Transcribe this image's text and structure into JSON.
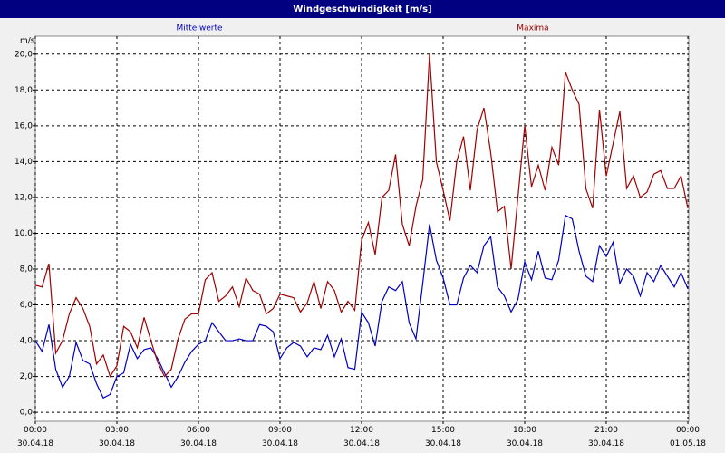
{
  "chart_data": {
    "type": "line",
    "title": "Windgeschwindigkeit [m/s]",
    "y_label": "m/s",
    "x": [
      0,
      0.25,
      0.5,
      0.75,
      1,
      1.25,
      1.5,
      1.75,
      2,
      2.25,
      2.5,
      2.75,
      3,
      3.25,
      3.5,
      3.75,
      4,
      4.25,
      4.5,
      4.75,
      5,
      5.25,
      5.5,
      5.75,
      6,
      6.25,
      6.5,
      6.75,
      7,
      7.25,
      7.5,
      7.75,
      8,
      8.25,
      8.5,
      8.75,
      9,
      9.25,
      9.5,
      9.75,
      10,
      10.25,
      10.5,
      10.75,
      11,
      11.25,
      11.5,
      11.75,
      12,
      12.25,
      12.5,
      12.75,
      13,
      13.25,
      13.5,
      13.75,
      14,
      14.25,
      14.5,
      14.75,
      15,
      15.25,
      15.5,
      15.75,
      16,
      16.25,
      16.5,
      16.75,
      17,
      17.25,
      17.5,
      17.75,
      18,
      18.25,
      18.5,
      18.75,
      19,
      19.25,
      19.5,
      19.75,
      20,
      20.25,
      20.5,
      20.75,
      21,
      21.25,
      21.5,
      21.75,
      22,
      22.25,
      22.5,
      22.75,
      23,
      23.25,
      23.5,
      23.75,
      24
    ],
    "series": [
      {
        "name": "Mittelwerte",
        "color": "#0000c0",
        "values": [
          4.0,
          3.4,
          4.9,
          2.4,
          1.4,
          2.0,
          3.9,
          2.9,
          2.7,
          1.6,
          0.8,
          1.0,
          2.0,
          2.2,
          3.8,
          3.0,
          3.5,
          3.6,
          3.0,
          2.2,
          1.4,
          2.0,
          2.8,
          3.4,
          3.8,
          4.0,
          5.0,
          4.5,
          4.0,
          4.0,
          4.1,
          4.0,
          4.0,
          4.9,
          4.8,
          4.5,
          3.0,
          3.6,
          3.9,
          3.7,
          3.1,
          3.6,
          3.5,
          4.3,
          3.1,
          4.1,
          2.5,
          2.4,
          5.6,
          5.0,
          3.7,
          6.2,
          7.0,
          6.8,
          7.3,
          5.0,
          4.1,
          7.2,
          10.5,
          8.5,
          7.5,
          6.0,
          6.0,
          7.5,
          8.2,
          7.8,
          9.3,
          9.8,
          7.0,
          6.5,
          5.6,
          6.3,
          8.4,
          7.4,
          9.0,
          7.5,
          7.4,
          8.5,
          11.0,
          10.8,
          9.0,
          7.6,
          7.3,
          9.3,
          8.7,
          9.5,
          7.2,
          8.0,
          7.6,
          6.5,
          7.8,
          7.3,
          8.2,
          7.6,
          7.0,
          7.8,
          6.9
        ]
      },
      {
        "name": "Maxima",
        "color": "#a00000",
        "values": [
          7.1,
          7.0,
          8.3,
          3.3,
          4.0,
          5.5,
          6.4,
          5.8,
          4.8,
          2.7,
          3.2,
          2.0,
          2.6,
          4.8,
          4.5,
          3.6,
          5.3,
          4.0,
          2.8,
          2.0,
          2.4,
          4.1,
          5.2,
          5.5,
          5.5,
          7.4,
          7.8,
          6.2,
          6.5,
          7.0,
          5.9,
          7.5,
          6.8,
          6.6,
          5.5,
          5.8,
          6.6,
          6.5,
          6.4,
          5.6,
          6.1,
          7.3,
          5.8,
          7.3,
          6.8,
          5.6,
          6.2,
          5.7,
          9.6,
          10.6,
          8.8,
          12.0,
          12.4,
          14.4,
          10.5,
          9.3,
          11.5,
          13.0,
          20.0,
          14.0,
          12.4,
          10.7,
          14.0,
          15.4,
          12.4,
          15.8,
          17.0,
          14.5,
          11.2,
          11.5,
          8.0,
          12.0,
          16.0,
          12.6,
          13.8,
          12.4,
          14.8,
          13.8,
          19.0,
          18.0,
          17.2,
          12.5,
          11.4,
          16.9,
          13.2,
          15.0,
          16.8,
          12.5,
          13.2,
          12.0,
          12.3,
          13.3,
          13.5,
          12.5,
          12.5,
          13.2,
          11.4
        ]
      }
    ],
    "xlim": [
      0,
      24
    ],
    "xticks": [
      {
        "value": 0,
        "label": "00:00\n30.04.18"
      },
      {
        "value": 3,
        "label": "03:00\n30.04.18"
      },
      {
        "value": 6,
        "label": "06:00\n30.04.18"
      },
      {
        "value": 9,
        "label": "09:00\n30.04.18"
      },
      {
        "value": 12,
        "label": "12:00\n30.04.18"
      },
      {
        "value": 15,
        "label": "15:00\n30.04.18"
      },
      {
        "value": 18,
        "label": "18:00\n30.04.18"
      },
      {
        "value": 21,
        "label": "21:00\n30.04.18"
      },
      {
        "value": 24,
        "label": "00:00\n01.05.18"
      }
    ],
    "ylim": [
      -0.5,
      21.0
    ],
    "yticks": [
      {
        "value": 0,
        "label": "0,0"
      },
      {
        "value": 2,
        "label": "2,0"
      },
      {
        "value": 4,
        "label": "4,0"
      },
      {
        "value": 6,
        "label": "6,0"
      },
      {
        "value": 8,
        "label": "8,0"
      },
      {
        "value": 10,
        "label": "10,0"
      },
      {
        "value": 12,
        "label": "12,0"
      },
      {
        "value": 14,
        "label": "14,0"
      },
      {
        "value": 16,
        "label": "16,0"
      },
      {
        "value": 18,
        "label": "18,0"
      },
      {
        "value": 20,
        "label": "20,0"
      }
    ],
    "grid": true
  }
}
